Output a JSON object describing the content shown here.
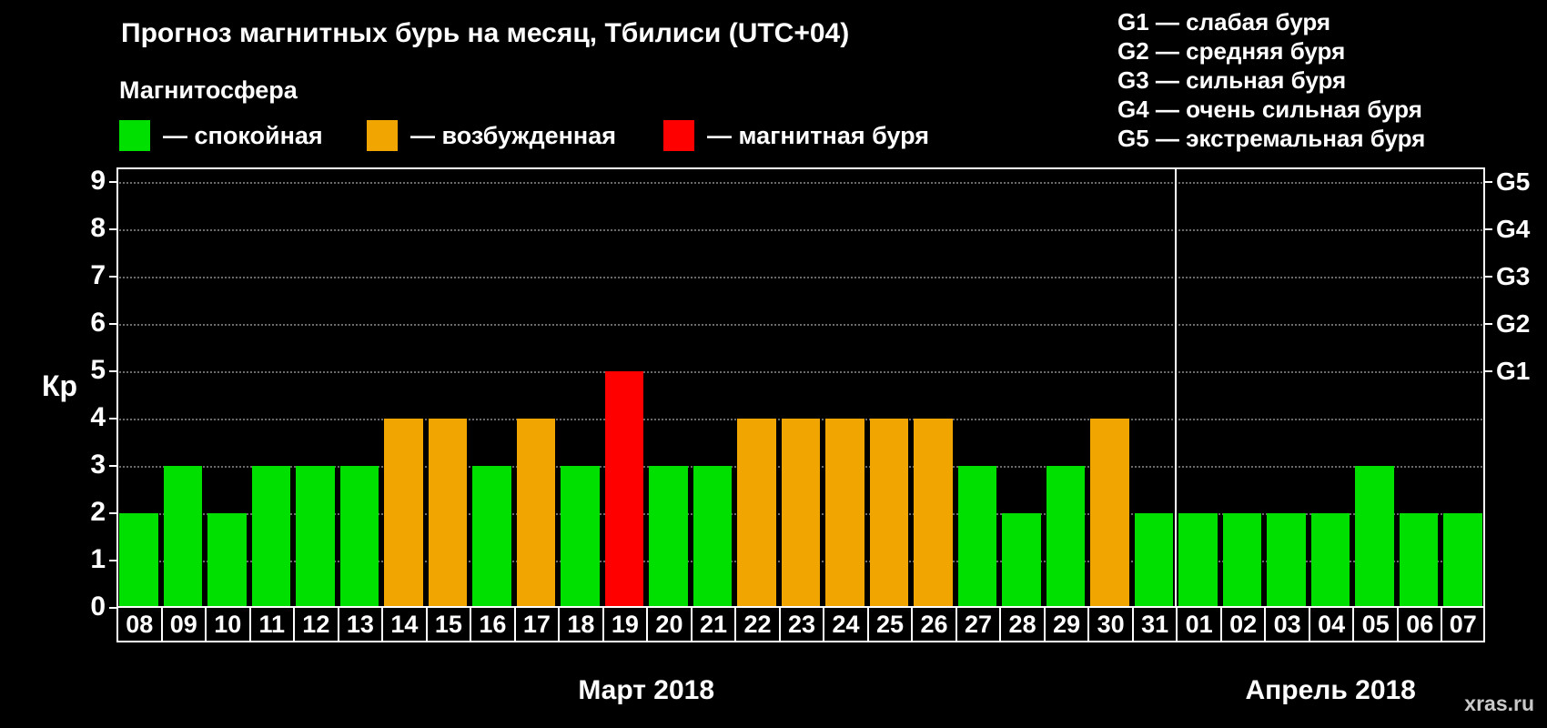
{
  "title": "Прогноз магнитных бурь на месяц, Тбилиси (UTC+04)",
  "legend": {
    "heading": "Магнитосфера",
    "items": [
      {
        "label": "— спокойная",
        "level": "quiet"
      },
      {
        "label": "— возбужденная",
        "level": "excited"
      },
      {
        "label": "— магнитная буря",
        "level": "storm"
      }
    ]
  },
  "storm_scale_legend": [
    "G1 — слабая буря",
    "G2 — средняя буря",
    "G3 — сильная буря",
    "G4 — очень сильная буря",
    "G5 — экстремальная буря"
  ],
  "watermark": "xras.ru",
  "chart_data": {
    "type": "bar",
    "title": "Прогноз магнитных бурь на месяц, Тбилиси (UTC+04)",
    "xlabel": "",
    "ylabel": "Кр",
    "ylim": [
      0,
      9
    ],
    "yticks": [
      "0",
      "1",
      "2",
      "3",
      "4",
      "5",
      "6",
      "7",
      "8",
      "9"
    ],
    "right_axis": [
      {
        "label": "G1",
        "value": 5
      },
      {
        "label": "G2",
        "value": 6
      },
      {
        "label": "G3",
        "value": 7
      },
      {
        "label": "G4",
        "value": 8
      },
      {
        "label": "G5",
        "value": 9
      }
    ],
    "grid": "dotted-horizontal",
    "legend_position": "top-left",
    "colors": {
      "quiet": "#00e000",
      "excited": "#f0a500",
      "storm": "#ff0000"
    },
    "months": [
      {
        "label": "Март 2018",
        "days": [
          {
            "day": "08",
            "kp": 2,
            "level": "quiet"
          },
          {
            "day": "09",
            "kp": 3,
            "level": "quiet"
          },
          {
            "day": "10",
            "kp": 2,
            "level": "quiet"
          },
          {
            "day": "11",
            "kp": 3,
            "level": "quiet"
          },
          {
            "day": "12",
            "kp": 3,
            "level": "quiet"
          },
          {
            "day": "13",
            "kp": 3,
            "level": "quiet"
          },
          {
            "day": "14",
            "kp": 4,
            "level": "excited"
          },
          {
            "day": "15",
            "kp": 4,
            "level": "excited"
          },
          {
            "day": "16",
            "kp": 3,
            "level": "quiet"
          },
          {
            "day": "17",
            "kp": 4,
            "level": "excited"
          },
          {
            "day": "18",
            "kp": 3,
            "level": "quiet"
          },
          {
            "day": "19",
            "kp": 5,
            "level": "storm"
          },
          {
            "day": "20",
            "kp": 3,
            "level": "quiet"
          },
          {
            "day": "21",
            "kp": 3,
            "level": "quiet"
          },
          {
            "day": "22",
            "kp": 4,
            "level": "excited"
          },
          {
            "day": "23",
            "kp": 4,
            "level": "excited"
          },
          {
            "day": "24",
            "kp": 4,
            "level": "excited"
          },
          {
            "day": "25",
            "kp": 4,
            "level": "excited"
          },
          {
            "day": "26",
            "kp": 4,
            "level": "excited"
          },
          {
            "day": "27",
            "kp": 3,
            "level": "quiet"
          },
          {
            "day": "28",
            "kp": 2,
            "level": "quiet"
          },
          {
            "day": "29",
            "kp": 3,
            "level": "quiet"
          },
          {
            "day": "30",
            "kp": 4,
            "level": "excited"
          },
          {
            "day": "31",
            "kp": 2,
            "level": "quiet"
          }
        ]
      },
      {
        "label": "Апрель 2018",
        "days": [
          {
            "day": "01",
            "kp": 2,
            "level": "quiet"
          },
          {
            "day": "02",
            "kp": 2,
            "level": "quiet"
          },
          {
            "day": "03",
            "kp": 2,
            "level": "quiet"
          },
          {
            "day": "04",
            "kp": 2,
            "level": "quiet"
          },
          {
            "day": "05",
            "kp": 3,
            "level": "quiet"
          },
          {
            "day": "06",
            "kp": 2,
            "level": "quiet"
          },
          {
            "day": "07",
            "kp": 2,
            "level": "quiet"
          }
        ]
      }
    ]
  }
}
